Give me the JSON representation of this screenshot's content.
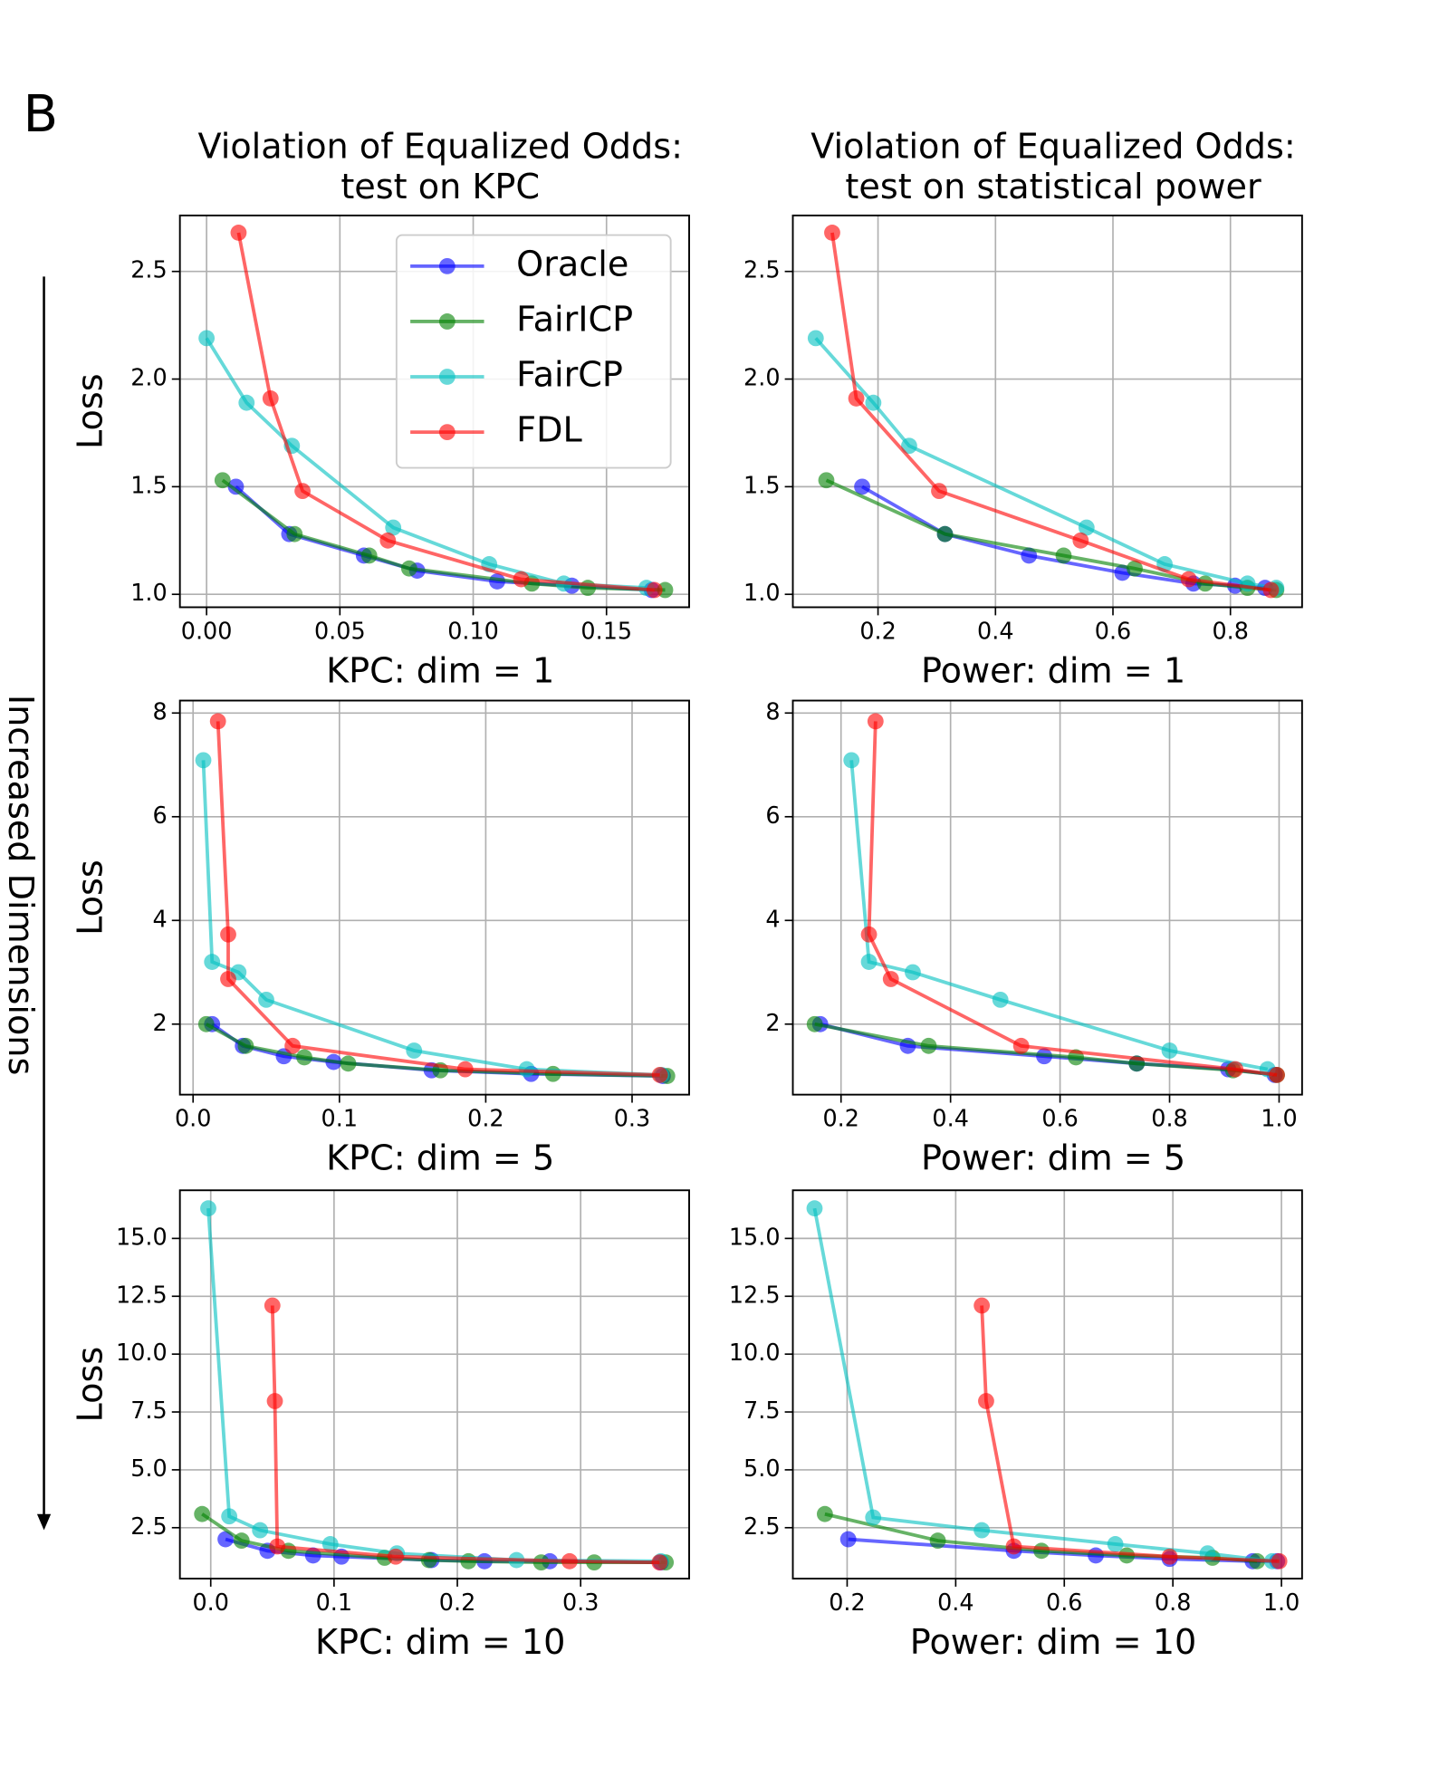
{
  "panel_label": "B",
  "side_label": "Increased Dimensions",
  "chart_data": [
    {
      "type": "line",
      "title": [
        "Violation of Equalized Odds:",
        "test on KPC"
      ],
      "xlabel": "KPC: dim = 1",
      "ylabel": "Loss",
      "grid": true,
      "legend": "upper right",
      "xlim": [
        -0.01,
        0.181
      ],
      "ylim": [
        0.94,
        2.76
      ],
      "xticks": [
        {
          "value": 0,
          "label": "0.00"
        },
        {
          "value": 0.05,
          "label": "0.05"
        },
        {
          "value": 0.1,
          "label": "0.10"
        },
        {
          "value": 0.15,
          "label": "0.15"
        }
      ],
      "yticks": [
        {
          "value": 1,
          "label": "1.0"
        },
        1.5,
        {
          "value": 2,
          "label": "2.0"
        },
        2.5
      ],
      "series": [
        {
          "name": "Oracle",
          "color": "#0000ff",
          "x": [
            0.011,
            0.031,
            0.059,
            0.079,
            0.109,
            0.137,
            0.167
          ],
          "values": [
            1.5,
            1.28,
            1.18,
            1.11,
            1.06,
            1.04,
            1.02
          ]
        },
        {
          "name": "FairICP",
          "color": "#008000",
          "x": [
            0.006,
            0.033,
            0.061,
            0.076,
            0.122,
            0.143,
            0.172
          ],
          "values": [
            1.53,
            1.28,
            1.18,
            1.12,
            1.05,
            1.03,
            1.02
          ]
        },
        {
          "name": "FairCP",
          "color": "#00bfbf",
          "x": [
            0.0,
            0.015,
            0.032,
            0.07,
            0.106,
            0.134,
            0.165
          ],
          "values": [
            2.19,
            1.89,
            1.69,
            1.31,
            1.14,
            1.05,
            1.03
          ]
        },
        {
          "name": "FDL",
          "color": "#ff0000",
          "x": [
            0.012,
            0.024,
            0.036,
            0.068,
            0.118,
            0.168
          ],
          "values": [
            2.68,
            1.91,
            1.48,
            1.25,
            1.07,
            1.02
          ]
        }
      ]
    },
    {
      "type": "line",
      "title": [
        "Violation of Equalized Odds:",
        "test on statistical power"
      ],
      "xlabel": "Power: dim = 1",
      "grid": true,
      "xlim": [
        0.055,
        0.922
      ],
      "ylim": [
        0.94,
        2.76
      ],
      "xticks": [
        0.2,
        0.4,
        0.6,
        0.8
      ],
      "yticks": [
        {
          "value": 1,
          "label": "1.0"
        },
        1.5,
        {
          "value": 2,
          "label": "2.0"
        },
        2.5
      ],
      "series": [
        {
          "name": "Oracle",
          "color": "#0000ff",
          "x": [
            0.173,
            0.314,
            0.457,
            0.616,
            0.737,
            0.808,
            0.859
          ],
          "values": [
            1.5,
            1.28,
            1.18,
            1.1,
            1.05,
            1.04,
            1.03
          ]
        },
        {
          "name": "FairICP",
          "color": "#008000",
          "x": [
            0.112,
            0.314,
            0.516,
            0.637,
            0.757,
            0.829,
            0.878
          ],
          "values": [
            1.53,
            1.28,
            1.18,
            1.12,
            1.05,
            1.03,
            1.02
          ]
        },
        {
          "name": "FairCP",
          "color": "#00bfbf",
          "x": [
            0.094,
            0.192,
            0.253,
            0.555,
            0.688,
            0.829,
            0.878
          ],
          "values": [
            2.19,
            1.89,
            1.69,
            1.31,
            1.14,
            1.05,
            1.03
          ]
        },
        {
          "name": "FDL",
          "color": "#ff0000",
          "x": [
            0.122,
            0.163,
            0.304,
            0.545,
            0.729,
            0.869
          ],
          "values": [
            2.68,
            1.91,
            1.48,
            1.25,
            1.07,
            1.02
          ]
        }
      ]
    },
    {
      "type": "line",
      "xlabel": "KPC: dim = 5",
      "ylabel": "Loss",
      "grid": true,
      "xlim": [
        -0.009,
        0.339
      ],
      "ylim": [
        0.64,
        8.24
      ],
      "xticks": [
        {
          "value": 0,
          "label": "0.0"
        },
        0.1,
        0.2,
        0.3
      ],
      "yticks": [
        2,
        4,
        6,
        8
      ],
      "series": [
        {
          "name": "Oracle",
          "color": "#0000ff",
          "x": [
            0.013,
            0.034,
            0.062,
            0.096,
            0.163,
            0.231,
            0.321
          ],
          "values": [
            2.0,
            1.58,
            1.38,
            1.27,
            1.11,
            1.04,
            1.0
          ]
        },
        {
          "name": "FairICP",
          "color": "#008000",
          "x": [
            0.009,
            0.036,
            0.076,
            0.106,
            0.169,
            0.246,
            0.324
          ],
          "values": [
            2.0,
            1.58,
            1.36,
            1.24,
            1.11,
            1.04,
            1.0
          ]
        },
        {
          "name": "FairCP",
          "color": "#00bfbf",
          "x": [
            0.007,
            0.013,
            0.031,
            0.05,
            0.151,
            0.228,
            0.32
          ],
          "values": [
            7.09,
            3.2,
            3.0,
            2.47,
            1.49,
            1.13,
            1.02
          ]
        },
        {
          "name": "FDL",
          "color": "#ff0000",
          "x": [
            0.017,
            0.024,
            0.024,
            0.068,
            0.186,
            0.319
          ],
          "values": [
            7.84,
            3.73,
            2.87,
            1.58,
            1.13,
            1.02
          ]
        }
      ]
    },
    {
      "type": "line",
      "xlabel": "Power: dim = 5",
      "grid": true,
      "xlim": [
        0.112,
        1.042
      ],
      "ylim": [
        0.64,
        8.24
      ],
      "xticks": [
        0.2,
        0.4,
        0.6,
        0.8,
        {
          "value": 1,
          "label": "1.0"
        }
      ],
      "yticks": [
        2,
        4,
        6,
        8
      ],
      "series": [
        {
          "name": "Oracle",
          "color": "#0000ff",
          "x": [
            0.162,
            0.322,
            0.571,
            0.74,
            0.907,
            0.992
          ],
          "values": [
            2.0,
            1.58,
            1.38,
            1.24,
            1.13,
            1.02
          ]
        },
        {
          "name": "FairICP",
          "color": "#008000",
          "x": [
            0.152,
            0.36,
            0.629,
            0.74,
            0.916,
            0.996
          ],
          "values": [
            2.0,
            1.58,
            1.36,
            1.24,
            1.11,
            1.02
          ]
        },
        {
          "name": "FairCP",
          "color": "#00bfbf",
          "x": [
            0.219,
            0.251,
            0.331,
            0.491,
            0.8,
            0.979
          ],
          "values": [
            7.09,
            3.2,
            3.0,
            2.47,
            1.49,
            1.13
          ]
        },
        {
          "name": "FDL",
          "color": "#ff0000",
          "x": [
            0.263,
            0.251,
            0.291,
            0.529,
            0.92,
            0.996
          ],
          "values": [
            7.84,
            3.73,
            2.87,
            1.58,
            1.13,
            1.02
          ]
        }
      ]
    },
    {
      "type": "line",
      "xlabel": "KPC: dim = 10",
      "ylabel": "Loss",
      "grid": true,
      "xlim": [
        -0.025,
        0.388
      ],
      "ylim": [
        0.3,
        17.08
      ],
      "xticks": [
        {
          "value": 0,
          "label": "0.0"
        },
        0.1,
        0.2,
        0.3
      ],
      "yticks": [
        2.5,
        {
          "value": 5,
          "label": "5.0"
        },
        7.5,
        {
          "value": 10,
          "label": "10.0"
        },
        12.5,
        {
          "value": 15,
          "label": "15.0"
        }
      ],
      "series": [
        {
          "name": "Oracle",
          "color": "#0000ff",
          "x": [
            0.012,
            0.046,
            0.083,
            0.106,
            0.179,
            0.222,
            0.275,
            0.365
          ],
          "values": [
            2.0,
            1.5,
            1.3,
            1.25,
            1.1,
            1.05,
            1.05,
            1.0
          ]
        },
        {
          "name": "FairICP",
          "color": "#008000",
          "x": [
            -0.007,
            0.025,
            0.063,
            0.141,
            0.177,
            0.209,
            0.268,
            0.311,
            0.369
          ],
          "values": [
            3.09,
            1.94,
            1.5,
            1.2,
            1.1,
            1.05,
            1.0,
            1.0,
            1.0
          ]
        },
        {
          "name": "FairCP",
          "color": "#00bfbf",
          "x": [
            -0.002,
            0.015,
            0.04,
            0.097,
            0.151,
            0.248,
            0.365
          ],
          "values": [
            16.3,
            2.99,
            2.39,
            1.79,
            1.39,
            1.1,
            1.05
          ]
        },
        {
          "name": "FDL",
          "color": "#ff0000",
          "x": [
            0.05,
            0.052,
            0.054,
            0.15,
            0.291,
            0.364
          ],
          "values": [
            12.1,
            7.97,
            1.69,
            1.25,
            1.05,
            1.0
          ]
        }
      ]
    },
    {
      "type": "line",
      "xlabel": "Power: dim = 10",
      "grid": true,
      "xlim": [
        0.1,
        1.038
      ],
      "ylim": [
        0.3,
        17.08
      ],
      "xticks": [
        0.2,
        0.4,
        0.6,
        0.8,
        {
          "value": 1,
          "label": "1.0"
        }
      ],
      "yticks": [
        2.5,
        {
          "value": 5,
          "label": "5.0"
        },
        7.5,
        {
          "value": 10,
          "label": "10.0"
        },
        12.5,
        {
          "value": 15,
          "label": "15.0"
        }
      ],
      "series": [
        {
          "name": "Oracle",
          "color": "#0000ff",
          "x": [
            0.202,
            0.507,
            0.658,
            0.794,
            0.947,
            0.992
          ],
          "values": [
            2.0,
            1.5,
            1.3,
            1.15,
            1.05,
            1.05
          ]
        },
        {
          "name": "FairICP",
          "color": "#008000",
          "x": [
            0.159,
            0.367,
            0.558,
            0.715,
            0.873,
            0.955
          ],
          "values": [
            3.09,
            1.94,
            1.5,
            1.3,
            1.2,
            1.05
          ]
        },
        {
          "name": "FairCP",
          "color": "#00bfbf",
          "x": [
            0.14,
            0.248,
            0.448,
            0.694,
            0.864,
            0.983
          ],
          "values": [
            16.3,
            2.94,
            2.39,
            1.79,
            1.39,
            1.05
          ]
        },
        {
          "name": "FDL",
          "color": "#ff0000",
          "x": [
            0.448,
            0.456,
            0.507,
            0.794,
            0.996
          ],
          "values": [
            12.1,
            7.97,
            1.69,
            1.25,
            1.05
          ]
        }
      ]
    }
  ]
}
